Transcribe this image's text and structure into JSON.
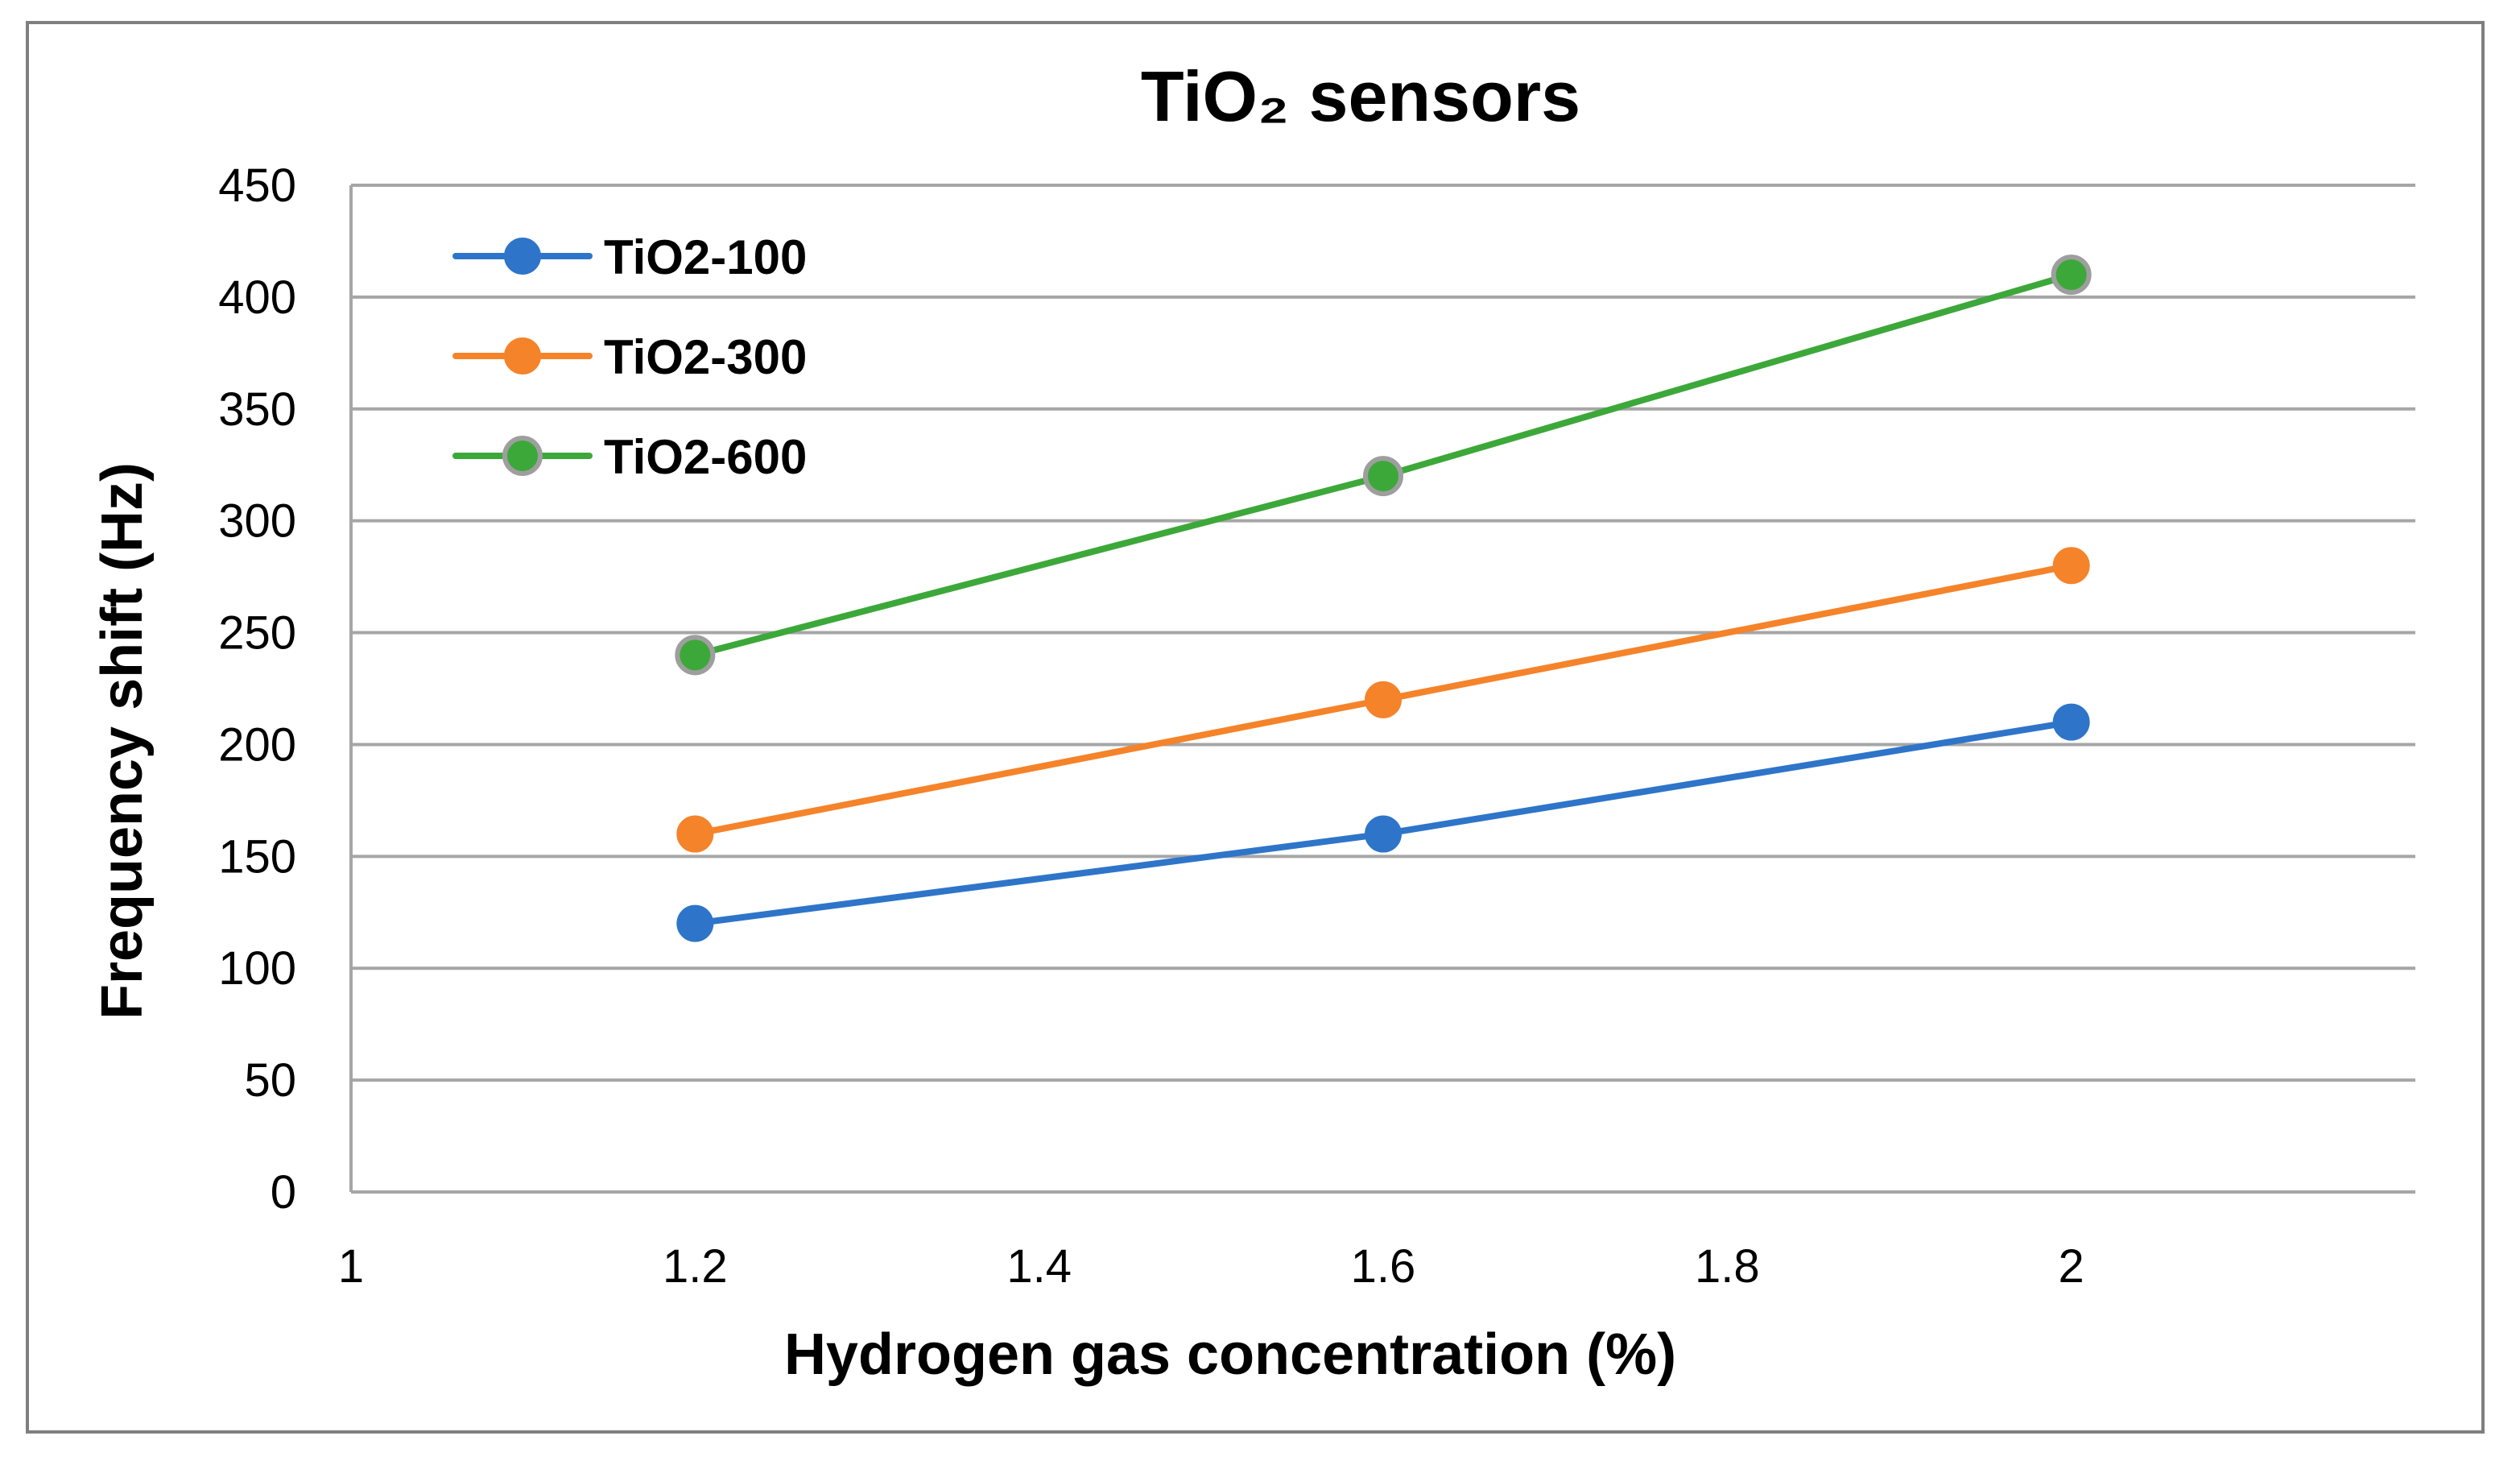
{
  "chart_data": {
    "type": "line",
    "title": "TiO₂ sensors",
    "xlabel": "Hydrogen gas concentration (%)",
    "ylabel": "Frequency shift (Hz)",
    "xlim": [
      1,
      2.2
    ],
    "ylim": [
      0,
      450
    ],
    "x_ticks": [
      1,
      1.2,
      1.4,
      1.6,
      1.8,
      2
    ],
    "x_tick_labels": [
      "1",
      "1.2",
      "1.4",
      "1.6",
      "1.8",
      "2"
    ],
    "y_ticks": [
      0,
      50,
      100,
      150,
      200,
      250,
      300,
      350,
      400,
      450
    ],
    "y_tick_labels": [
      "0",
      "50",
      "100",
      "150",
      "200",
      "250",
      "300",
      "350",
      "400",
      "450"
    ],
    "grid": "horizontal",
    "legend_position": "top-left",
    "x": [
      1.2,
      1.6,
      2
    ],
    "series": [
      {
        "name": "TiO2-100",
        "color": "#2E75C9",
        "values": [
          120,
          160,
          210
        ]
      },
      {
        "name": "TiO2-300",
        "color": "#F5832A",
        "values": [
          160,
          220,
          280
        ]
      },
      {
        "name": "TiO2-600",
        "color": "#3DA83A",
        "marker_edge": "#9E9E9E",
        "values": [
          240,
          320,
          410
        ]
      }
    ]
  }
}
